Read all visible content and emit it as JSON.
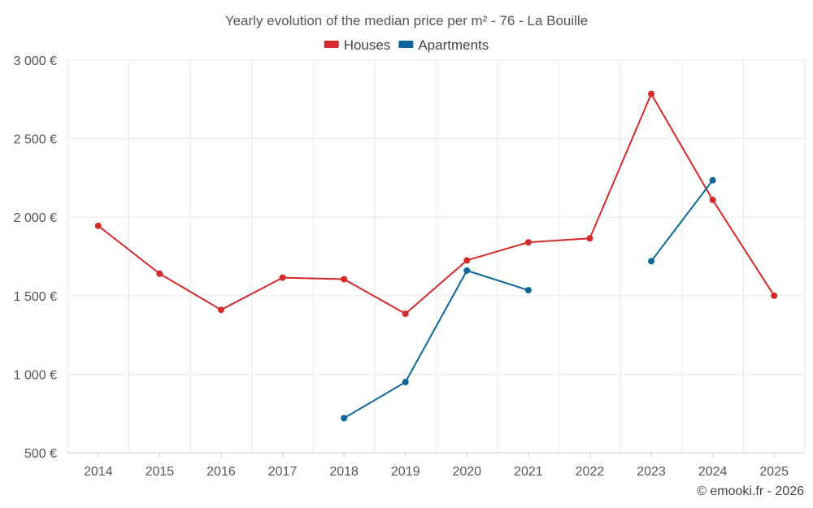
{
  "chart_data": {
    "type": "line",
    "title": "Yearly evolution of the median price per m² - 76 - La Bouille",
    "categories": [
      "2014",
      "2015",
      "2016",
      "2017",
      "2018",
      "2019",
      "2020",
      "2021",
      "2022",
      "2023",
      "2024",
      "2025"
    ],
    "series": [
      {
        "name": "Houses",
        "color": "#d42a2a",
        "values": [
          1945,
          1640,
          1410,
          1615,
          1605,
          1385,
          1725,
          1840,
          1865,
          2785,
          2110,
          1500
        ]
      },
      {
        "name": "Apartments",
        "color": "#0b679a",
        "values": [
          null,
          null,
          null,
          null,
          720,
          950,
          1660,
          1535,
          null,
          1720,
          2235,
          null
        ]
      }
    ],
    "ylim": [
      500,
      3000
    ],
    "yticks": [
      500,
      1000,
      1500,
      2000,
      2500,
      3000
    ],
    "ytick_labels": [
      "500 €",
      "1 000 €",
      "1 500 €",
      "2 000 €",
      "2 500 €",
      "3 000 €"
    ],
    "xlabel": "",
    "ylabel": "",
    "grid": true,
    "legend": "top-center"
  },
  "credit": "© emooki.fr - 2026"
}
